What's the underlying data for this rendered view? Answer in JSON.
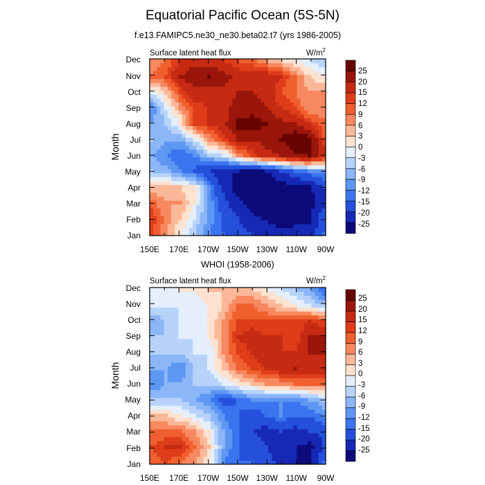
{
  "page": {
    "title": "Equatorial Pacific Ocean (5S-5N)"
  },
  "colorbar": {
    "levels": [
      -25,
      -20,
      -15,
      -12,
      -9,
      -6,
      -3,
      0,
      3,
      6,
      9,
      12,
      15,
      20,
      25
    ],
    "colors": [
      "#0d0a7a",
      "#1629b5",
      "#2550dc",
      "#3b74ef",
      "#5e96f3",
      "#8bb6f7",
      "#b7d3fa",
      "#e4eefc",
      "#fde2d0",
      "#fbb898",
      "#f7885f",
      "#f0602f",
      "#df3d1a",
      "#c62a12",
      "#9a160a",
      "#680400"
    ]
  },
  "chart_data": [
    {
      "type": "heatmap",
      "title": "f.e13.FAMIPC5.ne30_ne30.beta02.t7 (yrs 1986-2005)",
      "left_label": "Surface latent heat flux",
      "units": "W/m",
      "units_superscript": "2",
      "ylabel": "Month",
      "xlabel": "",
      "x_ticks": [
        "150E",
        "170E",
        "170W",
        "150W",
        "130W",
        "110W",
        "90W"
      ],
      "y_ticks": [
        "Jan",
        "Feb",
        "Mar",
        "Apr",
        "May",
        "Jun",
        "Jul",
        "Aug",
        "Sep",
        "Oct",
        "Nov",
        "Dec"
      ],
      "x": [
        150,
        160,
        170,
        180,
        190,
        200,
        210,
        220,
        230,
        240,
        250,
        260,
        270
      ],
      "y": [
        "Jan",
        "Feb",
        "Mar",
        "Apr",
        "May",
        "Jun",
        "Jul",
        "Aug",
        "Sep",
        "Oct",
        "Nov",
        "Dec"
      ],
      "values": [
        [
          12,
          6,
          0,
          -6,
          -12,
          -15,
          -18,
          -20,
          -22,
          -24,
          -24,
          -24,
          -15
        ],
        [
          14,
          8,
          3,
          -3,
          -10,
          -16,
          -20,
          -24,
          -26,
          -27,
          -26,
          -26,
          -16
        ],
        [
          10,
          6,
          6,
          0,
          -10,
          -18,
          -24,
          -27,
          -28,
          -30,
          -29,
          -28,
          -22
        ],
        [
          3,
          3,
          3,
          0,
          -12,
          -22,
          -28,
          -30,
          -30,
          -28,
          -27,
          -26,
          -20
        ],
        [
          -6,
          -8,
          -12,
          -16,
          -20,
          -24,
          -25,
          -26,
          -25,
          -20,
          -15,
          -12,
          -10
        ],
        [
          -9,
          -12,
          -15,
          -12,
          -6,
          -3,
          6,
          12,
          18,
          20,
          24,
          25,
          18
        ],
        [
          -6,
          -9,
          -9,
          -3,
          6,
          12,
          20,
          20,
          22,
          25,
          30,
          28,
          12
        ],
        [
          -9,
          -6,
          0,
          12,
          15,
          18,
          27,
          28,
          25,
          22,
          20,
          15,
          10
        ],
        [
          -12,
          -3,
          6,
          12,
          15,
          18,
          22,
          22,
          20,
          15,
          12,
          6,
          6
        ],
        [
          -3,
          3,
          12,
          18,
          18,
          18,
          20,
          20,
          18,
          12,
          9,
          6,
          6
        ],
        [
          9,
          12,
          20,
          24,
          25,
          22,
          18,
          18,
          18,
          15,
          9,
          3,
          0
        ],
        [
          6,
          9,
          15,
          18,
          18,
          15,
          12,
          10,
          6,
          3,
          0,
          -3,
          -6
        ]
      ],
      "value_range": [
        -30,
        30
      ]
    },
    {
      "type": "heatmap",
      "title": "WHOI (1958-2006)",
      "left_label": "Surface latent heat flux",
      "units": "W/m",
      "units_superscript": "2",
      "ylabel": "Month",
      "xlabel": "",
      "x_ticks": [
        "150E",
        "170E",
        "170W",
        "150W",
        "130W",
        "110W",
        "90W"
      ],
      "y_ticks": [
        "Jan",
        "Feb",
        "Mar",
        "Apr",
        "May",
        "Jun",
        "Jul",
        "Aug",
        "Sep",
        "Oct",
        "Nov",
        "Dec"
      ],
      "x": [
        150,
        160,
        170,
        180,
        190,
        200,
        210,
        220,
        230,
        240,
        250,
        260,
        270
      ],
      "y": [
        "Jan",
        "Feb",
        "Mar",
        "Apr",
        "May",
        "Jun",
        "Jul",
        "Aug",
        "Sep",
        "Oct",
        "Nov",
        "Dec"
      ],
      "values": [
        [
          9,
          12,
          9,
          6,
          0,
          -12,
          -15,
          -15,
          -18,
          -22,
          -25,
          -27,
          -15
        ],
        [
          12,
          15,
          15,
          9,
          3,
          -9,
          -15,
          -18,
          -20,
          -22,
          -25,
          -27,
          -20
        ],
        [
          9,
          9,
          9,
          6,
          0,
          -9,
          -15,
          -20,
          -22,
          -20,
          -22,
          -20,
          -18
        ],
        [
          3,
          3,
          0,
          -3,
          -6,
          -12,
          -15,
          -18,
          -15,
          -12,
          -15,
          -15,
          -12
        ],
        [
          -6,
          -6,
          -6,
          -9,
          -12,
          -18,
          -15,
          -12,
          -12,
          -12,
          -12,
          -9,
          -6
        ],
        [
          -12,
          -9,
          -9,
          -6,
          -6,
          -3,
          0,
          3,
          6,
          6,
          9,
          9,
          9
        ],
        [
          -9,
          -9,
          -12,
          -6,
          -3,
          3,
          9,
          12,
          15,
          18,
          20,
          18,
          18
        ],
        [
          -6,
          -6,
          -6,
          -3,
          -3,
          6,
          12,
          15,
          18,
          15,
          15,
          20,
          20
        ],
        [
          -6,
          -6,
          -3,
          -3,
          0,
          6,
          15,
          18,
          15,
          15,
          12,
          20,
          22
        ],
        [
          -9,
          -6,
          -3,
          -3,
          0,
          6,
          12,
          12,
          12,
          12,
          12,
          15,
          12
        ],
        [
          -3,
          -3,
          -3,
          -3,
          0,
          3,
          9,
          9,
          6,
          3,
          0,
          -3,
          -6
        ],
        [
          -3,
          -3,
          0,
          0,
          3,
          3,
          3,
          3,
          0,
          -3,
          -6,
          -9,
          -15
        ]
      ],
      "value_range": [
        -30,
        30
      ]
    }
  ]
}
